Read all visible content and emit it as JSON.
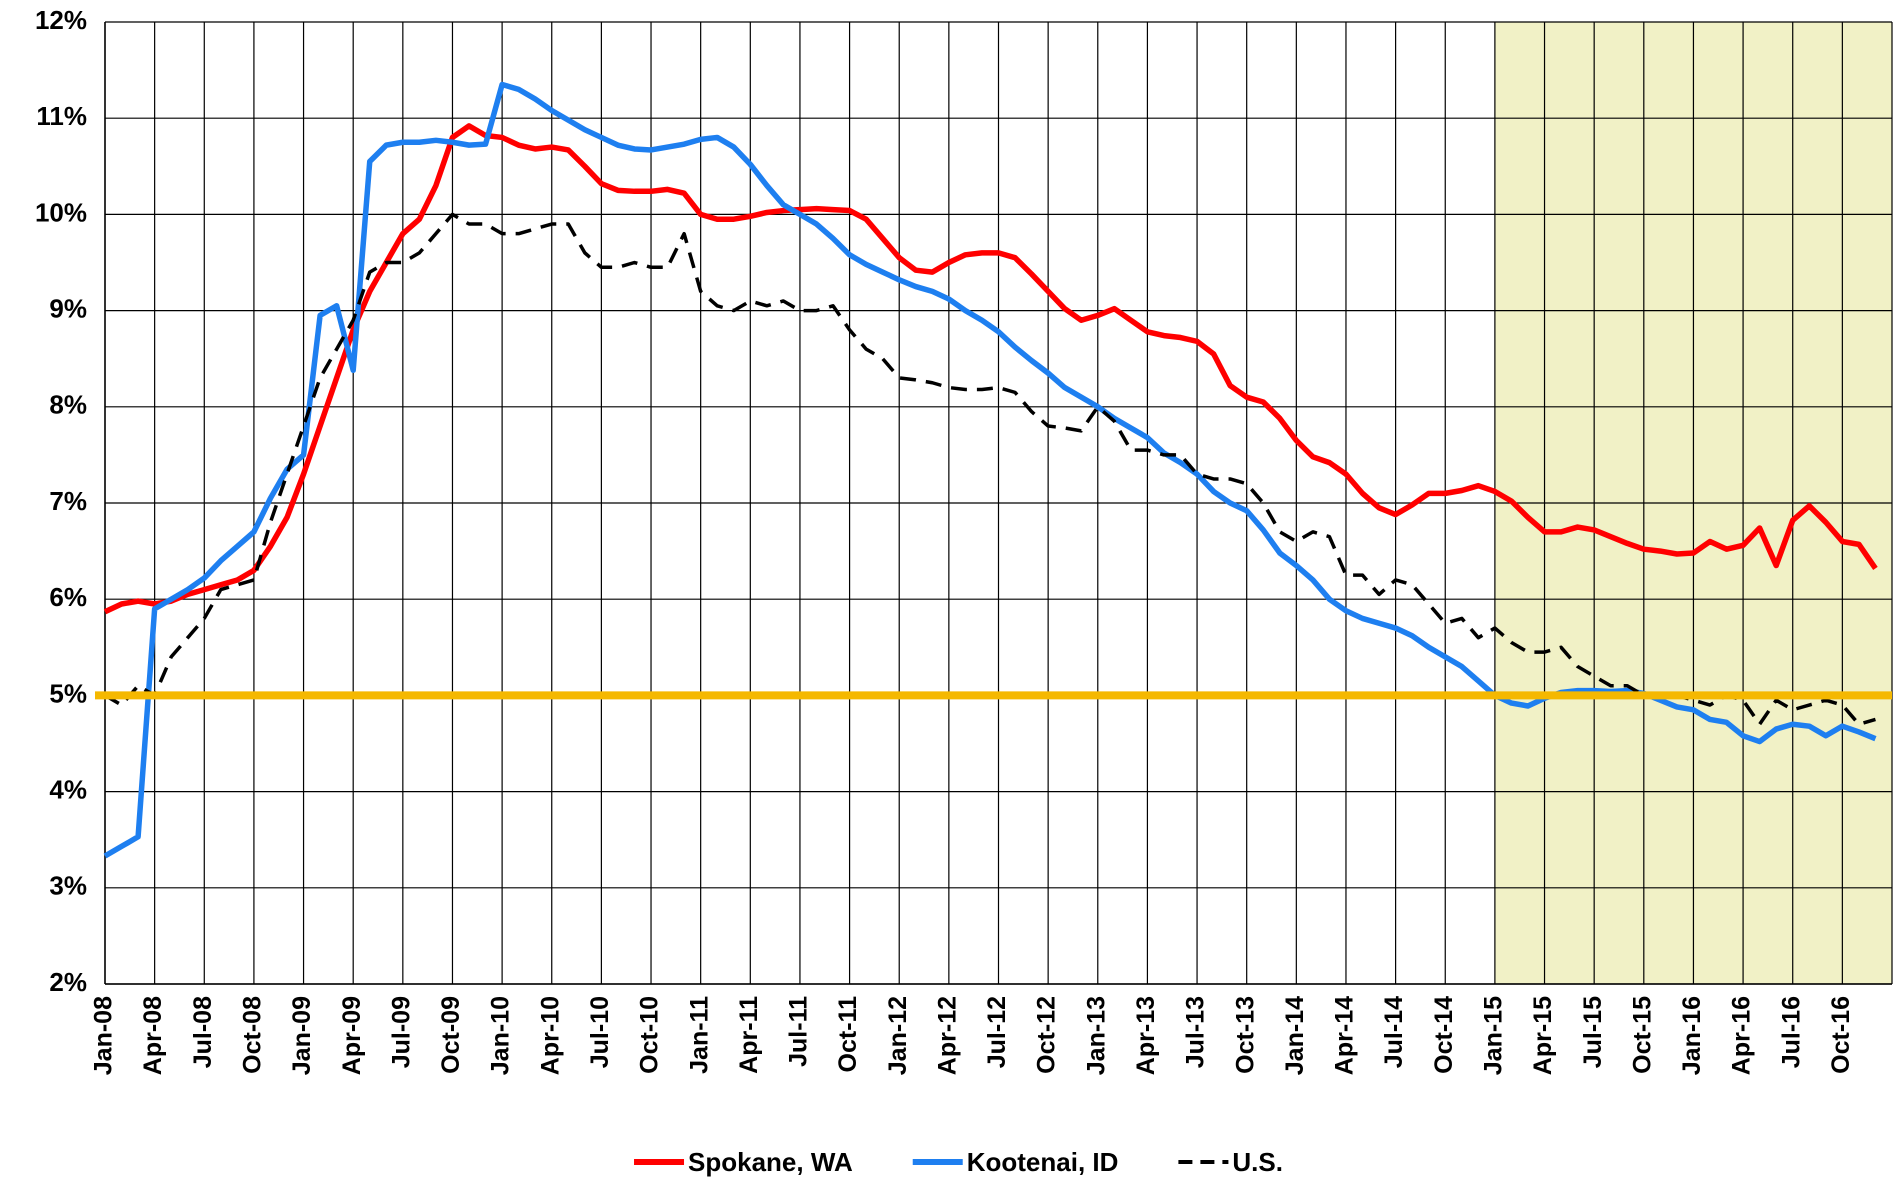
{
  "chart_data": {
    "type": "line",
    "categories": [
      "Jan-08",
      null,
      null,
      "Apr-08",
      null,
      null,
      "Jul-08",
      null,
      null,
      "Oct-08",
      null,
      null,
      "Jan-09",
      null,
      null,
      "Apr-09",
      null,
      null,
      "Jul-09",
      null,
      null,
      "Oct-09",
      null,
      null,
      "Jan-10",
      null,
      null,
      "Apr-10",
      null,
      null,
      "Jul-10",
      null,
      null,
      "Oct-10",
      null,
      null,
      "Jan-11",
      null,
      null,
      "Apr-11",
      null,
      null,
      "Jul-11",
      null,
      null,
      "Oct-11",
      null,
      null,
      "Jan-12",
      null,
      null,
      "Apr-12",
      null,
      null,
      "Jul-12",
      null,
      null,
      "Oct-12",
      null,
      null,
      "Jan-13",
      null,
      null,
      "Apr-13",
      null,
      null,
      "Jul-13",
      null,
      null,
      "Oct-13",
      null,
      null,
      "Jan-14",
      null,
      null,
      "Apr-14",
      null,
      null,
      "Jul-14",
      null,
      null,
      "Oct-14",
      null,
      null,
      "Jan-15",
      null,
      null,
      "Apr-15",
      null,
      null,
      "Jul-15",
      null,
      null,
      "Oct-15",
      null,
      null,
      "Jan-16",
      null,
      null,
      "Apr-16",
      null,
      null,
      "Jul-16",
      null,
      null,
      "Oct-16",
      null,
      null
    ],
    "series": [
      {
        "name": "Spokane, WA",
        "color": "#ff0000",
        "dashed": false,
        "values": [
          5.87,
          5.95,
          5.98,
          5.95,
          5.98,
          6.05,
          6.1,
          6.15,
          6.2,
          6.3,
          6.55,
          6.85,
          7.3,
          7.8,
          8.3,
          8.8,
          9.2,
          9.5,
          9.8,
          9.95,
          10.3,
          10.8,
          10.92,
          10.82,
          10.8,
          10.72,
          10.68,
          10.7,
          10.67,
          10.5,
          10.32,
          10.25,
          10.24,
          10.24,
          10.26,
          10.22,
          10.0,
          9.95,
          9.95,
          9.98,
          10.02,
          10.04,
          10.05,
          10.06,
          10.05,
          10.04,
          9.95,
          9.75,
          9.55,
          9.42,
          9.4,
          9.5,
          9.58,
          9.6,
          9.6,
          9.55,
          9.38,
          9.2,
          9.02,
          8.9,
          8.95,
          9.02,
          8.9,
          8.78,
          8.74,
          8.72,
          8.68,
          8.55,
          8.22,
          8.1,
          8.05,
          7.88,
          7.65,
          7.48,
          7.42,
          7.3,
          7.1,
          6.95,
          6.88,
          6.98,
          7.1,
          7.1,
          7.13,
          7.18,
          7.12,
          7.02,
          6.85,
          6.7,
          6.7,
          6.75,
          6.72,
          6.65,
          6.58,
          6.52,
          6.5,
          6.47,
          6.48,
          6.6,
          6.52,
          6.56,
          6.74,
          6.35,
          6.82,
          6.97,
          6.8,
          6.6,
          6.57,
          6.32
        ]
      },
      {
        "name": "Kootenai, ID",
        "color": "#1e7ff0",
        "dashed": false,
        "values": [
          3.33,
          3.43,
          3.53,
          5.9,
          6.0,
          6.1,
          6.22,
          6.4,
          6.55,
          6.7,
          7.05,
          7.35,
          7.5,
          8.95,
          9.05,
          8.38,
          10.55,
          10.72,
          10.75,
          10.75,
          10.77,
          10.75,
          10.72,
          10.73,
          11.35,
          11.3,
          11.2,
          11.08,
          10.98,
          10.88,
          10.8,
          10.72,
          10.68,
          10.67,
          10.7,
          10.73,
          10.78,
          10.8,
          10.7,
          10.52,
          10.3,
          10.1,
          10.0,
          9.9,
          9.75,
          9.58,
          9.48,
          9.4,
          9.32,
          9.25,
          9.2,
          9.12,
          9.0,
          8.9,
          8.78,
          8.62,
          8.48,
          8.35,
          8.2,
          8.1,
          8.0,
          7.88,
          7.78,
          7.68,
          7.52,
          7.42,
          7.3,
          7.12,
          7.0,
          6.92,
          6.72,
          6.48,
          6.35,
          6.2,
          6.0,
          5.88,
          5.8,
          5.75,
          5.7,
          5.62,
          5.5,
          5.4,
          5.3,
          5.15,
          5.0,
          4.92,
          4.89,
          4.97,
          5.03,
          5.05,
          5.05,
          5.04,
          5.05,
          5.02,
          4.95,
          4.88,
          4.85,
          4.75,
          4.72,
          4.58,
          4.52,
          4.65,
          4.7,
          4.68,
          4.58,
          4.68,
          4.62,
          4.55
        ]
      },
      {
        "name": "U.S.",
        "color": "#000000",
        "dashed": true,
        "values": [
          5.0,
          4.9,
          5.1,
          5.0,
          5.4,
          5.6,
          5.8,
          6.1,
          6.15,
          6.2,
          6.8,
          7.3,
          7.8,
          8.3,
          8.6,
          8.9,
          9.4,
          9.5,
          9.5,
          9.6,
          9.8,
          10.0,
          9.9,
          9.9,
          9.8,
          9.8,
          9.85,
          9.9,
          9.9,
          9.6,
          9.45,
          9.45,
          9.5,
          9.45,
          9.45,
          9.8,
          9.2,
          9.05,
          9.0,
          9.1,
          9.05,
          9.1,
          9.0,
          9.0,
          9.05,
          8.8,
          8.6,
          8.5,
          8.3,
          8.28,
          8.25,
          8.2,
          8.18,
          8.18,
          8.2,
          8.15,
          7.95,
          7.8,
          7.78,
          7.75,
          8.0,
          7.85,
          7.55,
          7.55,
          7.5,
          7.5,
          7.3,
          7.25,
          7.25,
          7.2,
          7.0,
          6.7,
          6.6,
          6.7,
          6.65,
          6.25,
          6.25,
          6.05,
          6.2,
          6.15,
          5.95,
          5.75,
          5.8,
          5.6,
          5.7,
          5.55,
          5.45,
          5.45,
          5.5,
          5.3,
          5.2,
          5.1,
          5.1,
          5.0,
          5.0,
          5.0,
          4.95,
          4.9,
          5.0,
          4.95,
          4.7,
          4.95,
          4.85,
          4.9,
          4.95,
          4.9,
          4.7,
          4.75
        ]
      }
    ],
    "ylim": [
      2,
      12
    ],
    "yticks": [
      {
        "value": 2,
        "label": "2%"
      },
      {
        "value": 3,
        "label": "3%"
      },
      {
        "value": 4,
        "label": "4%"
      },
      {
        "value": 5,
        "label": "5%"
      },
      {
        "value": 6,
        "label": "6%"
      },
      {
        "value": 7,
        "label": "7%"
      },
      {
        "value": 8,
        "label": "8%"
      },
      {
        "value": 9,
        "label": "9%"
      },
      {
        "value": 10,
        "label": "10%"
      },
      {
        "value": 11,
        "label": "11%"
      },
      {
        "value": 12,
        "label": "12%"
      }
    ],
    "grid": true,
    "reference_line": {
      "value": 5,
      "color": "#f5b800"
    },
    "highlight": {
      "from": "Jan-15",
      "color": "#f1f1c6"
    },
    "legend": "bottom"
  }
}
